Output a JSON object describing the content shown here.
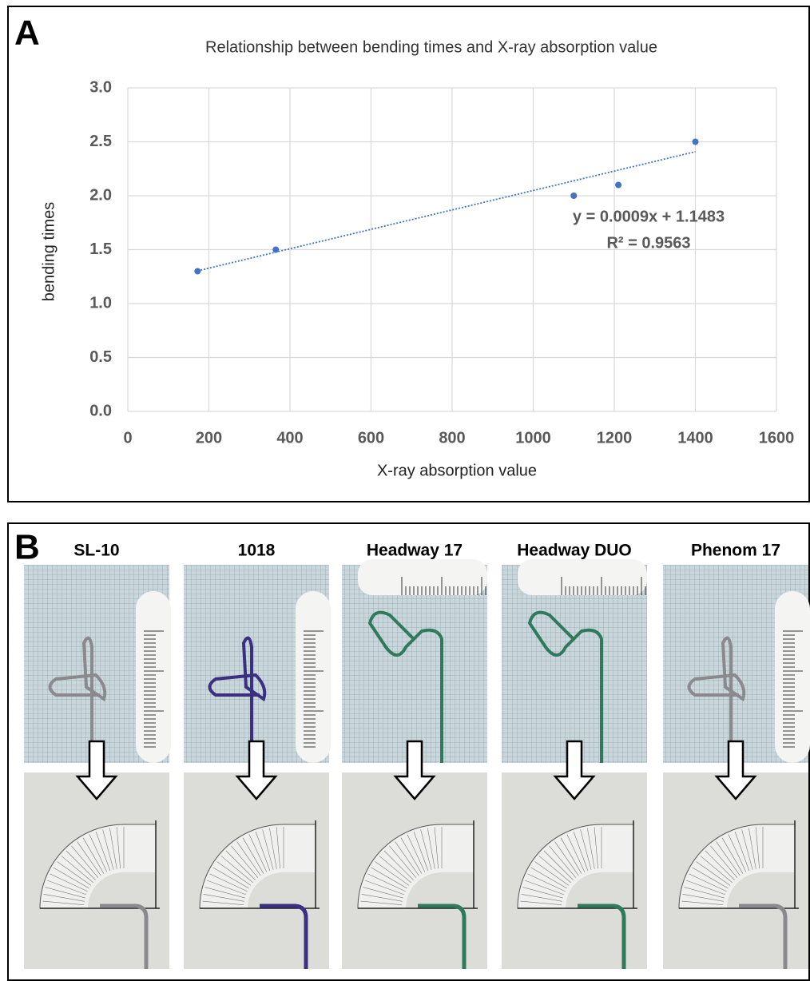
{
  "panel_a": {
    "label": "A"
  },
  "chart_data": {
    "type": "scatter",
    "title": "Relationship between bending times and X-ray absorption value",
    "x_label": "X-ray absorption value",
    "y_label": "bending times",
    "series": [
      {
        "name": "bending times",
        "color": "#4472c4",
        "x": [
          172,
          365,
          1100,
          1210,
          1400
        ],
        "values": [
          1.3,
          1.5,
          2.0,
          2.1,
          2.5
        ]
      }
    ],
    "trendline": {
      "slope": 0.0009,
      "intercept": 1.1483,
      "equation": "y = 0.0009x + 1.1483",
      "r_squared": "R² = 0.9563"
    },
    "xlim": [
      0,
      1600
    ],
    "xticks": [
      0,
      200,
      400,
      600,
      800,
      1000,
      1200,
      1400,
      1600
    ],
    "ylim": [
      0,
      3.0
    ],
    "yticks": [
      {
        "value": 0,
        "label": "0.0"
      },
      {
        "value": 0.5,
        "label": "0.5"
      },
      {
        "value": 1.0,
        "label": "1.0"
      },
      {
        "value": 1.5,
        "label": "1.5"
      },
      {
        "value": 2.0,
        "label": "2.0"
      },
      {
        "value": 2.5,
        "label": "2.5"
      },
      {
        "value": 3.0,
        "label": "3.0"
      }
    ],
    "grid": true
  },
  "panel_b": {
    "label": "B",
    "items": [
      "SL-10",
      "1018",
      "Headway 17",
      "Headway DUO",
      "Phenom 17"
    ]
  }
}
